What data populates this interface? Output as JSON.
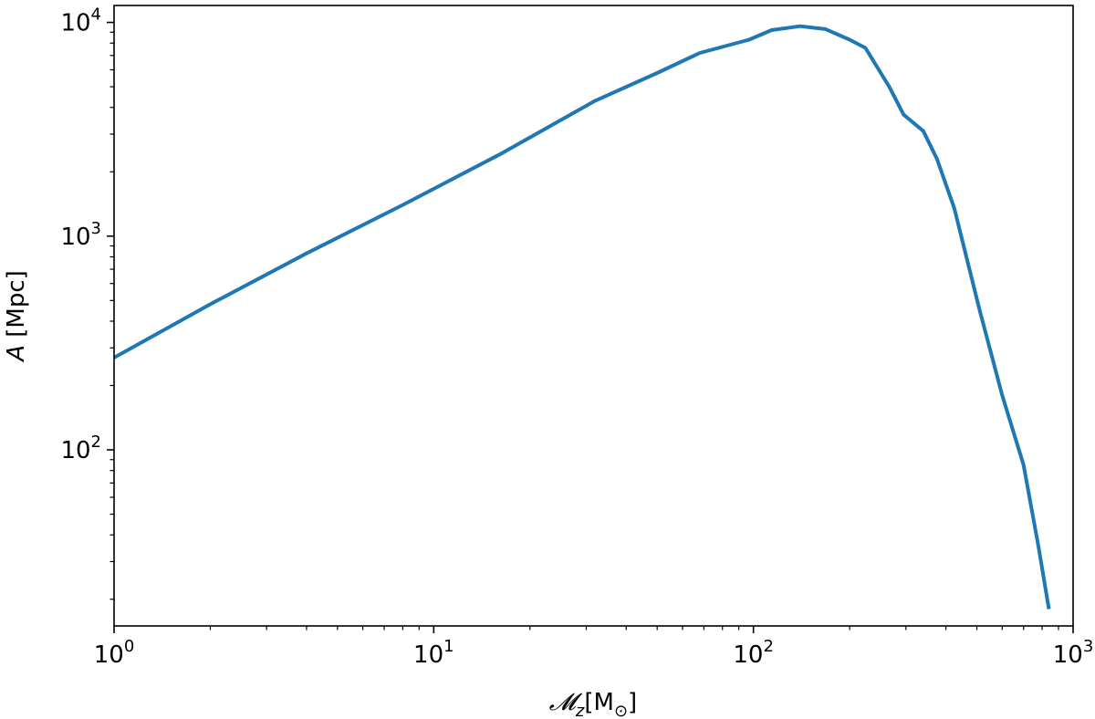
{
  "chart_data": {
    "type": "line",
    "title": "",
    "xlabel": {
      "symbol": "𝓜",
      "sub": "z",
      "unit": "[M",
      "unit_sub": "⊙",
      "unit_close": "]"
    },
    "ylabel": {
      "symbol": "A",
      "unit": " [Mpc]"
    },
    "xscale": "log",
    "yscale": "log",
    "xlim": [
      1,
      1000
    ],
    "ylim": [
      15,
      12000
    ],
    "grid": false,
    "x_ticks": [
      {
        "value": 1,
        "base": "10",
        "exp": "0"
      },
      {
        "value": 10,
        "base": "10",
        "exp": "1"
      },
      {
        "value": 100,
        "base": "10",
        "exp": "2"
      },
      {
        "value": 1000,
        "base": "10",
        "exp": "3"
      }
    ],
    "y_ticks": [
      {
        "value": 100,
        "base": "10",
        "exp": "2"
      },
      {
        "value": 1000,
        "base": "10",
        "exp": "3"
      },
      {
        "value": 10000,
        "base": "10",
        "exp": "4"
      }
    ],
    "series": [
      {
        "color": "#1f77b4",
        "x": [
          1,
          2,
          4,
          8,
          16,
          32,
          50,
          68,
          97,
          114,
          140,
          168,
          200,
          224,
          266,
          295,
          340,
          375,
          425,
          510,
          600,
          700,
          780,
          840
        ],
        "y": [
          270,
          480,
          830,
          1400,
          2400,
          4300,
          5800,
          7200,
          8300,
          9200,
          9600,
          9300,
          8300,
          7600,
          5000,
          3700,
          3100,
          2300,
          1350,
          450,
          180,
          85,
          35,
          18
        ]
      }
    ]
  }
}
